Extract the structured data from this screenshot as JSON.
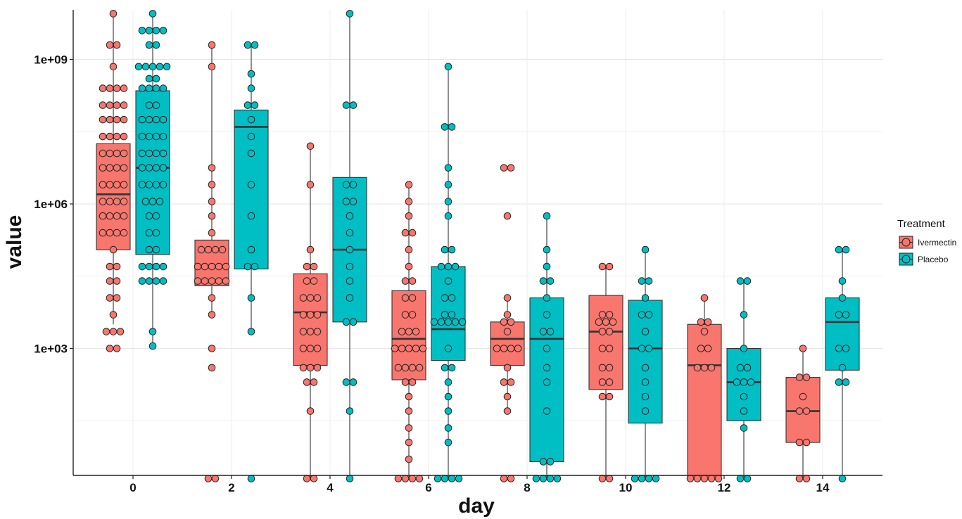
{
  "chart_data": {
    "type": "box",
    "xlabel": "day",
    "ylabel": "value",
    "x_ticks": [
      "0",
      "2",
      "4",
      "6",
      "8",
      "10",
      "12",
      "14"
    ],
    "y_scale": "log10",
    "y_ticks": [
      {
        "value": 1000,
        "label": "1e+03"
      },
      {
        "value": 1000000,
        "label": "1e+06"
      },
      {
        "value": 1000000000,
        "label": "1e+09"
      }
    ],
    "ylim_log10": [
      0.3,
      9.95
    ],
    "legend": {
      "title": "Treatment",
      "position": "right"
    },
    "grid": true,
    "colors": {
      "Ivermectin": "#F8766D",
      "Placebo": "#00BFC4"
    },
    "series": [
      {
        "name": "Ivermectin",
        "boxes": [
          {
            "day": 0,
            "lower_whisker": 3.5,
            "q1": 5.05,
            "median": 6.2,
            "q3": 7.25,
            "upper_whisker": 9.95,
            "points": [
              9.95,
              9.3,
              9.3,
              8.85,
              8.4,
              8.4,
              8.4,
              8.4,
              8.05,
              8.05,
              8.05,
              8.05,
              7.75,
              7.75,
              7.75,
              7.75,
              7.4,
              7.4,
              7.4,
              7.4,
              7.05,
              7.05,
              7.05,
              7.05,
              6.75,
              6.75,
              6.75,
              6.75,
              6.4,
              6.4,
              6.4,
              6.4,
              6.05,
              6.05,
              6.05,
              6.05,
              5.75,
              5.75,
              5.75,
              5.75,
              5.4,
              5.4,
              5.4,
              5.4,
              5.05,
              4.7,
              4.7,
              4.4,
              4.4,
              4.05,
              4.05,
              3.7,
              3.35,
              3.35,
              3.35,
              3.0,
              3.0
            ]
          },
          {
            "day": 2,
            "lower_whisker": 3.7,
            "q1": 4.3,
            "median": 4.7,
            "q3": 5.25,
            "upper_whisker": 9.3,
            "points": [
              9.3,
              8.85,
              6.75,
              6.4,
              6.05,
              5.75,
              5.4,
              5.05,
              5.05,
              5.05,
              5.05,
              4.7,
              4.7,
              4.7,
              4.7,
              4.7,
              4.4,
              4.4,
              4.4,
              4.4,
              4.4,
              4.05,
              3.7,
              3.0,
              2.6,
              0.3,
              0.3
            ]
          },
          {
            "day": 4,
            "lower_whisker": 0.3,
            "q1": 2.65,
            "median": 3.75,
            "q3": 4.55,
            "upper_whisker": 7.2,
            "points": [
              7.2,
              6.4,
              5.05,
              4.7,
              4.7,
              4.4,
              4.4,
              4.05,
              4.05,
              4.05,
              3.7,
              3.7,
              3.7,
              3.35,
              3.35,
              3.35,
              3.0,
              3.0,
              3.0,
              2.6,
              2.6,
              2.6,
              2.3,
              2.3,
              1.7,
              0.3,
              0.3
            ]
          },
          {
            "day": 6,
            "lower_whisker": 0.3,
            "q1": 2.35,
            "median": 3.2,
            "q3": 4.2,
            "upper_whisker": 6.4,
            "points": [
              6.4,
              6.05,
              5.75,
              5.4,
              5.4,
              5.05,
              4.7,
              4.4,
              4.4,
              4.05,
              4.05,
              3.7,
              3.7,
              3.35,
              3.35,
              3.35,
              3.0,
              3.0,
              3.0,
              3.0,
              3.0,
              2.6,
              2.6,
              2.6,
              2.6,
              2.3,
              2.3,
              2.0,
              1.7,
              1.35,
              1.05,
              0.7,
              0.3,
              0.3,
              0.3,
              0.3
            ]
          },
          {
            "day": 8,
            "lower_whisker": 1.7,
            "q1": 2.65,
            "median": 3.2,
            "q3": 3.55,
            "upper_whisker": 4.05,
            "points": [
              6.75,
              6.75,
              5.75,
              4.05,
              3.7,
              3.55,
              3.55,
              3.35,
              3.0,
              3.0,
              3.0,
              3.0,
              2.6,
              2.3,
              2.3,
              2.0,
              1.7,
              0.3,
              0.3
            ]
          },
          {
            "day": 10,
            "lower_whisker": 0.3,
            "q1": 2.15,
            "median": 3.35,
            "q3": 4.1,
            "upper_whisker": 4.7,
            "points": [
              4.7,
              4.7,
              3.7,
              3.7,
              3.55,
              3.55,
              3.55,
              3.35,
              3.35,
              3.0,
              3.0,
              2.6,
              2.6,
              2.3,
              2.3,
              2.0,
              2.0,
              0.3,
              0.3
            ]
          },
          {
            "day": 12,
            "lower_whisker": 0.3,
            "q1": 0.3,
            "median": 2.65,
            "q3": 3.5,
            "upper_whisker": 4.05,
            "points": [
              4.05,
              3.55,
              3.55,
              3.35,
              3.0,
              3.0,
              2.6,
              2.6,
              2.6,
              0.3,
              0.3,
              0.3,
              0.3,
              0.3
            ]
          },
          {
            "day": 14,
            "lower_whisker": 0.3,
            "q1": 1.05,
            "median": 1.7,
            "q3": 2.4,
            "upper_whisker": 3.0,
            "points": [
              3.0,
              2.4,
              2.4,
              2.0,
              1.7,
              1.7,
              1.05,
              1.05,
              0.3,
              0.3
            ]
          }
        ]
      },
      {
        "name": "Placebo",
        "boxes": [
          {
            "day": 0,
            "lower_whisker": 3.05,
            "q1": 4.95,
            "median": 6.75,
            "q3": 8.35,
            "upper_whisker": 9.95,
            "points": [
              9.95,
              9.6,
              9.6,
              9.6,
              9.6,
              9.3,
              9.3,
              8.85,
              8.85,
              8.85,
              8.85,
              8.85,
              8.6,
              8.6,
              8.4,
              8.4,
              8.4,
              8.4,
              8.05,
              8.05,
              7.75,
              7.75,
              7.75,
              7.75,
              7.4,
              7.4,
              7.4,
              7.4,
              7.05,
              7.05,
              7.05,
              7.05,
              6.75,
              6.75,
              6.75,
              6.75,
              6.4,
              6.4,
              6.4,
              6.4,
              6.05,
              6.05,
              6.05,
              5.75,
              5.75,
              5.4,
              5.4,
              5.05,
              5.05,
              4.7,
              4.7,
              4.7,
              4.7,
              4.4,
              4.4,
              4.4,
              4.4,
              3.35,
              3.05
            ]
          },
          {
            "day": 2,
            "lower_whisker": 3.35,
            "q1": 4.65,
            "median": 7.6,
            "q3": 7.95,
            "upper_whisker": 9.3,
            "points": [
              9.3,
              9.3,
              8.7,
              8.4,
              8.05,
              8.05,
              7.75,
              7.4,
              7.05,
              6.4,
              5.75,
              5.05,
              4.7,
              4.7,
              4.05,
              3.35,
              0.3
            ]
          },
          {
            "day": 4,
            "lower_whisker": 0.3,
            "q1": 3.55,
            "median": 5.05,
            "q3": 6.55,
            "upper_whisker": 9.95,
            "points": [
              9.95,
              8.05,
              8.05,
              6.4,
              6.4,
              6.05,
              6.05,
              5.75,
              5.4,
              5.05,
              4.7,
              4.4,
              4.05,
              3.55,
              3.55,
              2.3,
              2.3,
              1.7,
              0.3
            ]
          },
          {
            "day": 6,
            "lower_whisker": 0.3,
            "q1": 2.75,
            "median": 3.4,
            "q3": 4.7,
            "upper_whisker": 8.85,
            "points": [
              8.85,
              7.6,
              7.6,
              6.75,
              6.4,
              6.05,
              5.75,
              5.05,
              5.05,
              4.7,
              4.7,
              4.7,
              4.4,
              4.05,
              4.05,
              3.7,
              3.7,
              3.55,
              3.55,
              3.55,
              3.55,
              3.55,
              3.0,
              2.6,
              2.6,
              2.3,
              2.0,
              1.7,
              1.35,
              1.05,
              0.3,
              0.3,
              0.3,
              0.3
            ]
          },
          {
            "day": 8,
            "lower_whisker": 0.3,
            "q1": 0.65,
            "median": 3.2,
            "q3": 4.05,
            "upper_whisker": 5.75,
            "points": [
              5.75,
              5.05,
              4.7,
              4.4,
              4.4,
              4.05,
              3.7,
              3.35,
              3.35,
              3.0,
              2.6,
              2.3,
              1.7,
              0.65,
              0.65,
              0.3,
              0.3,
              0.3,
              0.3
            ]
          },
          {
            "day": 10,
            "lower_whisker": 0.3,
            "q1": 1.45,
            "median": 3.0,
            "q3": 4.0,
            "upper_whisker": 5.05,
            "points": [
              5.05,
              4.4,
              4.4,
              4.05,
              3.7,
              3.7,
              3.35,
              3.0,
              3.0,
              2.6,
              2.3,
              2.0,
              1.7,
              0.3,
              0.3,
              0.3,
              0.3
            ]
          },
          {
            "day": 12,
            "lower_whisker": 0.3,
            "q1": 1.5,
            "median": 2.3,
            "q3": 3.0,
            "upper_whisker": 4.4,
            "points": [
              4.4,
              4.4,
              3.7,
              3.0,
              2.6,
              2.6,
              2.3,
              2.3,
              2.3,
              2.0,
              1.7,
              1.35,
              0.3,
              0.3
            ]
          },
          {
            "day": 14,
            "lower_whisker": 0.3,
            "q1": 2.55,
            "median": 3.55,
            "q3": 4.05,
            "upper_whisker": 5.05,
            "points": [
              5.05,
              5.05,
              4.4,
              4.05,
              3.7,
              3.7,
              3.0,
              3.0,
              2.6,
              2.3,
              2.3,
              0.3
            ]
          }
        ]
      }
    ]
  }
}
